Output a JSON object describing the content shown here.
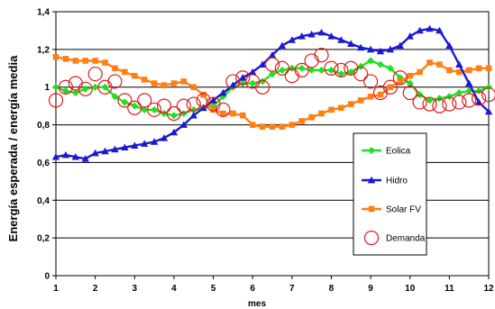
{
  "chart_data": {
    "type": "line",
    "title": "",
    "xlabel": "mes",
    "ylabel": "Energía esperada / energía media",
    "xlim": [
      1,
      12
    ],
    "ylim": [
      0,
      1.4
    ],
    "x_ticks": [
      "1",
      "2",
      "3",
      "4",
      "5",
      "6",
      "7",
      "8",
      "9",
      "10",
      "11",
      "12"
    ],
    "y_ticks": [
      "0",
      "0,2",
      "0,4",
      "0,6",
      "0,8",
      "1",
      "1,2",
      "1,4"
    ],
    "grid": true,
    "legend_position": "right",
    "series": [
      {
        "name": "Eolica",
        "color": "#22dd22",
        "marker": "diamond",
        "x": [
          1.0,
          1.25,
          1.5,
          1.75,
          2.0,
          2.25,
          2.5,
          2.75,
          3.0,
          3.25,
          3.5,
          3.75,
          4.0,
          4.25,
          4.5,
          4.75,
          5.0,
          5.25,
          5.5,
          5.75,
          6.0,
          6.25,
          6.5,
          6.75,
          7.0,
          7.25,
          7.5,
          7.75,
          8.0,
          8.25,
          8.5,
          8.75,
          9.0,
          9.25,
          9.5,
          9.75,
          10.0,
          10.25,
          10.5,
          10.75,
          11.0,
          11.25,
          11.5,
          11.75,
          12.0
        ],
        "values": [
          1.0,
          0.98,
          0.97,
          0.99,
          1.0,
          1.0,
          0.95,
          0.92,
          0.9,
          0.88,
          0.88,
          0.86,
          0.85,
          0.86,
          0.88,
          0.89,
          0.9,
          0.95,
          1.0,
          1.02,
          1.02,
          1.03,
          1.07,
          1.09,
          1.1,
          1.1,
          1.09,
          1.09,
          1.09,
          1.07,
          1.08,
          1.11,
          1.14,
          1.12,
          1.1,
          1.05,
          1.02,
          0.96,
          0.93,
          0.94,
          0.95,
          0.97,
          0.98,
          0.98,
          1.0
        ]
      },
      {
        "name": "Hidro",
        "color": "#1a1ad0",
        "marker": "triangle",
        "x": [
          1.0,
          1.25,
          1.5,
          1.75,
          2.0,
          2.25,
          2.5,
          2.75,
          3.0,
          3.25,
          3.5,
          3.75,
          4.0,
          4.25,
          4.5,
          4.75,
          5.0,
          5.25,
          5.5,
          5.75,
          6.0,
          6.25,
          6.5,
          6.75,
          7.0,
          7.25,
          7.5,
          7.75,
          8.0,
          8.25,
          8.5,
          8.75,
          9.0,
          9.25,
          9.5,
          9.75,
          10.0,
          10.25,
          10.5,
          10.75,
          11.0,
          11.25,
          11.5,
          11.75,
          12.0
        ],
        "values": [
          0.63,
          0.64,
          0.63,
          0.62,
          0.65,
          0.66,
          0.67,
          0.68,
          0.69,
          0.7,
          0.71,
          0.73,
          0.76,
          0.8,
          0.85,
          0.89,
          0.93,
          0.97,
          1.01,
          1.05,
          1.08,
          1.12,
          1.17,
          1.22,
          1.25,
          1.27,
          1.28,
          1.29,
          1.27,
          1.25,
          1.23,
          1.21,
          1.2,
          1.19,
          1.2,
          1.22,
          1.27,
          1.3,
          1.31,
          1.3,
          1.22,
          1.12,
          1.02,
          0.92,
          0.87
        ]
      },
      {
        "name": "Solar FV",
        "color": "#ff7f14",
        "marker": "square",
        "x": [
          1.0,
          1.25,
          1.5,
          1.75,
          2.0,
          2.25,
          2.5,
          2.75,
          3.0,
          3.25,
          3.5,
          3.75,
          4.0,
          4.25,
          4.5,
          4.75,
          5.0,
          5.25,
          5.5,
          5.75,
          6.0,
          6.25,
          6.5,
          6.75,
          7.0,
          7.25,
          7.5,
          7.75,
          8.0,
          8.25,
          8.5,
          8.75,
          9.0,
          9.25,
          9.5,
          9.75,
          10.0,
          10.25,
          10.5,
          10.75,
          11.0,
          11.25,
          11.5,
          11.75,
          12.0
        ],
        "values": [
          1.16,
          1.15,
          1.14,
          1.14,
          1.14,
          1.13,
          1.1,
          1.08,
          1.06,
          1.04,
          1.02,
          1.01,
          1.02,
          1.03,
          1.0,
          0.96,
          0.88,
          0.86,
          0.86,
          0.85,
          0.8,
          0.79,
          0.79,
          0.79,
          0.8,
          0.82,
          0.84,
          0.86,
          0.88,
          0.89,
          0.91,
          0.93,
          0.95,
          0.96,
          1.0,
          1.03,
          1.06,
          1.08,
          1.13,
          1.12,
          1.09,
          1.08,
          1.09,
          1.1,
          1.1
        ]
      },
      {
        "name": "Demanda",
        "color": "#e21a1a",
        "marker": "circle-open",
        "x": [
          1.0,
          1.25,
          1.5,
          1.75,
          2.0,
          2.25,
          2.5,
          2.75,
          3.0,
          3.25,
          3.5,
          3.75,
          4.0,
          4.25,
          4.5,
          4.75,
          5.0,
          5.25,
          5.5,
          5.75,
          6.0,
          6.25,
          6.5,
          6.75,
          7.0,
          7.25,
          7.5,
          7.75,
          8.0,
          8.25,
          8.5,
          8.75,
          9.0,
          9.25,
          9.5,
          9.75,
          10.0,
          10.25,
          10.5,
          10.75,
          11.0,
          11.25,
          11.5,
          11.75,
          12.0
        ],
        "values": [
          0.93,
          1.0,
          1.02,
          0.99,
          1.07,
          1.0,
          1.03,
          0.93,
          0.89,
          0.93,
          0.88,
          0.9,
          0.86,
          0.9,
          0.91,
          0.93,
          0.91,
          0.88,
          1.03,
          1.05,
          1.03,
          1.0,
          1.12,
          1.1,
          1.06,
          1.09,
          1.14,
          1.17,
          1.1,
          1.09,
          1.1,
          1.07,
          1.03,
          0.97,
          1.0,
          1.05,
          0.97,
          0.92,
          0.91,
          0.9,
          0.91,
          0.92,
          0.93,
          0.94,
          0.96
        ]
      }
    ]
  }
}
